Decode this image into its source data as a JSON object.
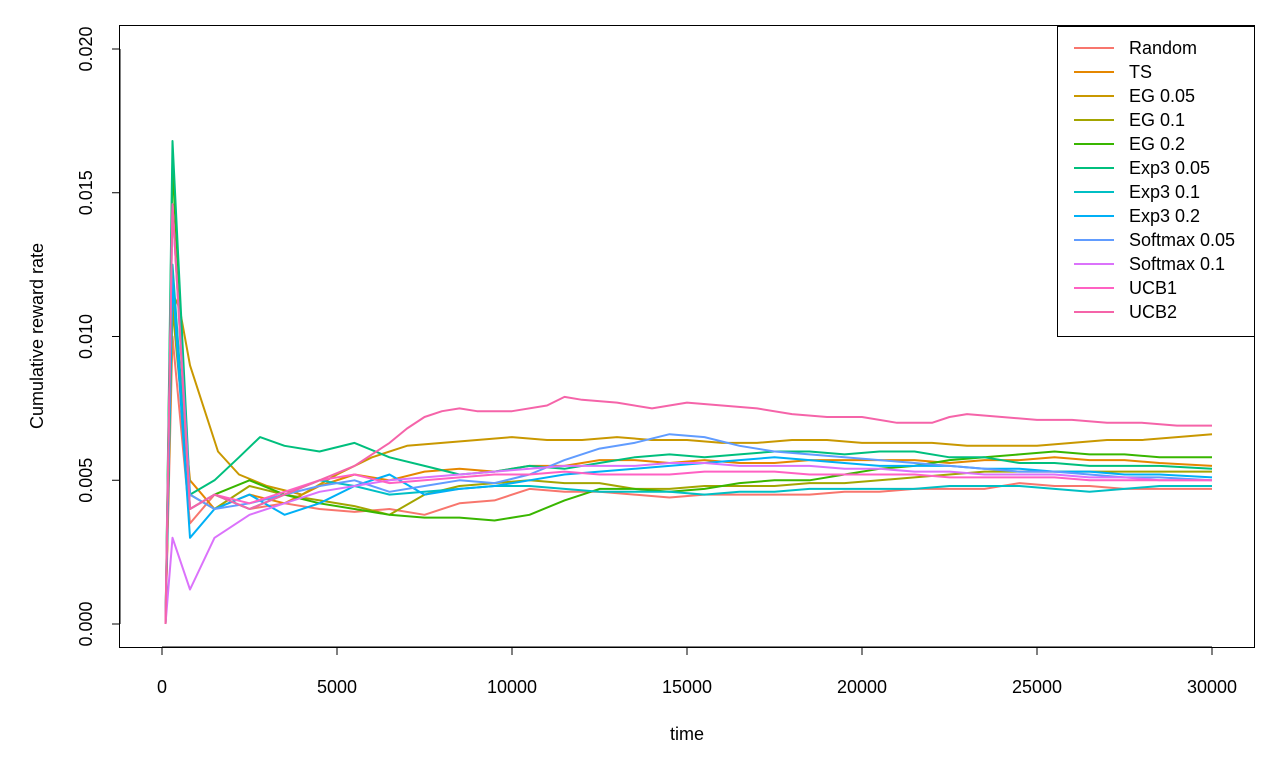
{
  "chart_data": {
    "type": "line",
    "xlabel": "time",
    "ylabel": "Cumulative reward rate",
    "xlim": [
      -1200,
      31200
    ],
    "ylim": [
      -0.0008,
      0.0208
    ],
    "x_ticks": [
      0,
      5000,
      10000,
      15000,
      20000,
      25000,
      30000
    ],
    "x_tick_labels": [
      "0",
      "5000",
      "10000",
      "15000",
      "20000",
      "25000",
      "30000"
    ],
    "y_ticks": [
      0.0,
      0.005,
      0.01,
      0.015,
      0.02
    ],
    "y_tick_labels": [
      "0.000",
      "0.005",
      "0.010",
      "0.015",
      "0.020"
    ],
    "legend_position": "top-right",
    "grid": false,
    "series": [
      {
        "name": "Random",
        "color": "#F8766D",
        "x": [
          100,
          300,
          800,
          1500,
          2500,
          3500,
          4500,
          5500,
          6500,
          7500,
          8500,
          9500,
          10500,
          11500,
          12500,
          13500,
          14500,
          15500,
          16500,
          17500,
          18500,
          19500,
          20500,
          21500,
          22500,
          23500,
          24500,
          25500,
          26500,
          27500,
          28500,
          30000
        ],
        "y": [
          0.0,
          0.01,
          0.0035,
          0.0045,
          0.004,
          0.0042,
          0.004,
          0.0039,
          0.004,
          0.0038,
          0.0042,
          0.0043,
          0.0047,
          0.0046,
          0.0046,
          0.0045,
          0.0044,
          0.0045,
          0.0045,
          0.0045,
          0.0045,
          0.0046,
          0.0046,
          0.0047,
          0.0047,
          0.0047,
          0.0049,
          0.0048,
          0.0048,
          0.0047,
          0.0047,
          0.0047
        ]
      },
      {
        "name": "TS",
        "color": "#E58700",
        "x": [
          100,
          300,
          800,
          1500,
          2500,
          3500,
          4500,
          5500,
          6500,
          7500,
          8500,
          9500,
          10500,
          11500,
          12500,
          13500,
          14500,
          15500,
          16500,
          17500,
          18500,
          19500,
          20500,
          21500,
          22500,
          23500,
          24500,
          25500,
          26500,
          27500,
          28500,
          30000
        ],
        "y": [
          0.0,
          0.0115,
          0.005,
          0.004,
          0.0045,
          0.0042,
          0.0048,
          0.0052,
          0.005,
          0.0053,
          0.0054,
          0.0053,
          0.0055,
          0.0055,
          0.0057,
          0.0057,
          0.0056,
          0.0057,
          0.0056,
          0.0056,
          0.0057,
          0.0057,
          0.0057,
          0.0057,
          0.0056,
          0.0057,
          0.0057,
          0.0058,
          0.0057,
          0.0057,
          0.0056,
          0.0055
        ]
      },
      {
        "name": "EG 0.05",
        "color": "#C99800",
        "x": [
          100,
          300,
          500,
          800,
          1200,
          1600,
          2200,
          3000,
          4000,
          5000,
          6000,
          7000,
          8000,
          9000,
          10000,
          11000,
          12000,
          13000,
          14000,
          15000,
          16000,
          17000,
          18000,
          19000,
          20000,
          21000,
          22000,
          23000,
          24000,
          25000,
          26000,
          27000,
          28000,
          29000,
          30000
        ],
        "y": [
          0.0,
          0.0115,
          0.011,
          0.009,
          0.0075,
          0.006,
          0.0052,
          0.0048,
          0.0045,
          0.0052,
          0.0058,
          0.0062,
          0.0063,
          0.0064,
          0.0065,
          0.0064,
          0.0064,
          0.0065,
          0.0064,
          0.0064,
          0.0063,
          0.0063,
          0.0064,
          0.0064,
          0.0063,
          0.0063,
          0.0063,
          0.0062,
          0.0062,
          0.0062,
          0.0063,
          0.0064,
          0.0064,
          0.0065,
          0.0066
        ]
      },
      {
        "name": "EG 0.1",
        "color": "#A3A500",
        "x": [
          100,
          300,
          800,
          1500,
          2500,
          3500,
          4500,
          5500,
          6500,
          7500,
          8500,
          9500,
          10500,
          11500,
          12500,
          13500,
          14500,
          15500,
          16500,
          17500,
          18500,
          19500,
          20500,
          21500,
          22500,
          23500,
          24500,
          25500,
          26500,
          27500,
          28500,
          30000
        ],
        "y": [
          0.0,
          0.011,
          0.0045,
          0.004,
          0.0048,
          0.0045,
          0.0043,
          0.0041,
          0.0038,
          0.0045,
          0.0048,
          0.0049,
          0.005,
          0.0049,
          0.0049,
          0.0047,
          0.0047,
          0.0048,
          0.0048,
          0.0048,
          0.0049,
          0.0049,
          0.005,
          0.0051,
          0.0052,
          0.0053,
          0.0053,
          0.0053,
          0.0053,
          0.0053,
          0.0053,
          0.0053
        ]
      },
      {
        "name": "EG 0.2",
        "color": "#39B600",
        "x": [
          100,
          300,
          800,
          1500,
          2500,
          3500,
          4500,
          5500,
          6500,
          7500,
          8500,
          9500,
          10500,
          11500,
          12500,
          13500,
          14500,
          15500,
          16500,
          17500,
          18500,
          19500,
          20500,
          21500,
          22500,
          23500,
          24500,
          25500,
          26500,
          27500,
          28500,
          30000
        ],
        "y": [
          0.0,
          0.016,
          0.004,
          0.0045,
          0.005,
          0.0045,
          0.0042,
          0.004,
          0.0038,
          0.0037,
          0.0037,
          0.0036,
          0.0038,
          0.0043,
          0.0047,
          0.0047,
          0.0046,
          0.0047,
          0.0049,
          0.005,
          0.005,
          0.0052,
          0.0054,
          0.0055,
          0.0057,
          0.0058,
          0.0059,
          0.006,
          0.0059,
          0.0059,
          0.0058,
          0.0058
        ]
      },
      {
        "name": "Exp3 0.05",
        "color": "#00BF7D",
        "x": [
          100,
          300,
          800,
          1500,
          2200,
          2800,
          3500,
          4500,
          5500,
          6500,
          7500,
          8500,
          9500,
          10500,
          11500,
          12500,
          13500,
          14500,
          15500,
          16500,
          17500,
          18500,
          19500,
          20500,
          21500,
          22500,
          23500,
          24500,
          25500,
          26500,
          27500,
          28500,
          30000
        ],
        "y": [
          0.0,
          0.0168,
          0.0045,
          0.005,
          0.0058,
          0.0065,
          0.0062,
          0.006,
          0.0063,
          0.0058,
          0.0055,
          0.0052,
          0.0053,
          0.0055,
          0.0054,
          0.0056,
          0.0058,
          0.0059,
          0.0058,
          0.0059,
          0.006,
          0.006,
          0.0059,
          0.006,
          0.006,
          0.0058,
          0.0058,
          0.0056,
          0.0056,
          0.0055,
          0.0055,
          0.0055,
          0.0054
        ]
      },
      {
        "name": "Exp3 0.1",
        "color": "#00BFC4",
        "x": [
          100,
          300,
          800,
          1500,
          2500,
          3500,
          4500,
          5500,
          6500,
          7500,
          8500,
          9500,
          10500,
          11500,
          12500,
          13500,
          14500,
          15500,
          16500,
          17500,
          18500,
          19500,
          20500,
          21500,
          22500,
          23500,
          24500,
          25500,
          26500,
          27500,
          28500,
          30000
        ],
        "y": [
          0.0,
          0.0125,
          0.004,
          0.0045,
          0.004,
          0.0045,
          0.005,
          0.0048,
          0.0045,
          0.0046,
          0.0047,
          0.0048,
          0.0048,
          0.0047,
          0.0046,
          0.0046,
          0.0046,
          0.0045,
          0.0046,
          0.0046,
          0.0047,
          0.0047,
          0.0047,
          0.0047,
          0.0048,
          0.0048,
          0.0048,
          0.0047,
          0.0046,
          0.0047,
          0.0048,
          0.0048
        ]
      },
      {
        "name": "Exp3 0.2",
        "color": "#00B0F6",
        "x": [
          100,
          300,
          800,
          1500,
          2500,
          3500,
          4500,
          5500,
          6500,
          7500,
          8500,
          9500,
          10500,
          11500,
          12500,
          13500,
          14500,
          15500,
          16500,
          17500,
          18500,
          19500,
          20500,
          21500,
          22500,
          23500,
          24500,
          25500,
          26500,
          27500,
          28500,
          30000
        ],
        "y": [
          0.0,
          0.012,
          0.003,
          0.004,
          0.0045,
          0.0038,
          0.0042,
          0.0048,
          0.0052,
          0.0045,
          0.0047,
          0.0048,
          0.005,
          0.0052,
          0.0053,
          0.0054,
          0.0055,
          0.0056,
          0.0057,
          0.0058,
          0.0057,
          0.0056,
          0.0055,
          0.0055,
          0.0055,
          0.0054,
          0.0054,
          0.0053,
          0.0053,
          0.0052,
          0.0052,
          0.0051
        ]
      },
      {
        "name": "Softmax 0.05",
        "color": "#619CFF",
        "x": [
          100,
          300,
          800,
          1500,
          2500,
          3500,
          4500,
          5500,
          6500,
          7500,
          8500,
          9500,
          10500,
          11500,
          12500,
          13500,
          14500,
          15500,
          16500,
          17500,
          18500,
          19500,
          20500,
          21500,
          22500,
          23500,
          24500,
          25500,
          26500,
          27500,
          28500,
          30000
        ],
        "y": [
          0.0,
          0.0145,
          0.0045,
          0.004,
          0.0042,
          0.0045,
          0.0048,
          0.005,
          0.0046,
          0.0048,
          0.005,
          0.0049,
          0.0052,
          0.0057,
          0.0061,
          0.0063,
          0.0066,
          0.0065,
          0.0062,
          0.006,
          0.0059,
          0.0058,
          0.0057,
          0.0056,
          0.0055,
          0.0054,
          0.0053,
          0.0053,
          0.0052,
          0.0051,
          0.0051,
          0.005
        ]
      },
      {
        "name": "Softmax 0.1",
        "color": "#DB72FB",
        "x": [
          100,
          300,
          800,
          1500,
          2500,
          3500,
          4500,
          5500,
          6500,
          7500,
          8500,
          9500,
          10500,
          11500,
          12500,
          13500,
          14500,
          15500,
          16500,
          17500,
          18500,
          19500,
          20500,
          21500,
          22500,
          23500,
          24500,
          25500,
          26500,
          27500,
          28500,
          30000
        ],
        "y": [
          0.0,
          0.003,
          0.0012,
          0.003,
          0.0038,
          0.0042,
          0.0046,
          0.0048,
          0.005,
          0.0051,
          0.0052,
          0.0053,
          0.0054,
          0.0055,
          0.0055,
          0.0055,
          0.0056,
          0.0056,
          0.0055,
          0.0055,
          0.0055,
          0.0054,
          0.0054,
          0.0053,
          0.0053,
          0.0052,
          0.0052,
          0.0052,
          0.0051,
          0.0051,
          0.005,
          0.005
        ]
      },
      {
        "name": "UCB1",
        "color": "#FF61C3",
        "x": [
          100,
          300,
          800,
          1500,
          2500,
          3500,
          4500,
          5500,
          6500,
          7500,
          8500,
          9500,
          10500,
          11500,
          12500,
          13500,
          14500,
          15500,
          16500,
          17500,
          18500,
          19500,
          20500,
          21500,
          22500,
          23500,
          24500,
          25500,
          26500,
          27500,
          28500,
          30000
        ],
        "y": [
          0.0,
          0.0146,
          0.004,
          0.0045,
          0.0042,
          0.0046,
          0.005,
          0.0052,
          0.0049,
          0.005,
          0.0051,
          0.0052,
          0.0052,
          0.0053,
          0.0052,
          0.0052,
          0.0052,
          0.0053,
          0.0053,
          0.0053,
          0.0052,
          0.0052,
          0.0052,
          0.0052,
          0.0051,
          0.0051,
          0.0051,
          0.0051,
          0.005,
          0.005,
          0.005,
          0.005
        ]
      },
      {
        "name": "UCB2",
        "color": "#F564A9",
        "x": [
          100,
          300,
          800,
          1500,
          2500,
          3500,
          4500,
          5500,
          6500,
          7000,
          7500,
          8000,
          8500,
          9000,
          10000,
          11000,
          11500,
          12000,
          13000,
          14000,
          15000,
          16000,
          17000,
          18000,
          19000,
          20000,
          21000,
          22000,
          22500,
          23000,
          24000,
          25000,
          26000,
          27000,
          28000,
          29000,
          30000
        ],
        "y": [
          0.0,
          0.0146,
          0.004,
          0.0045,
          0.004,
          0.0045,
          0.005,
          0.0055,
          0.0063,
          0.0068,
          0.0072,
          0.0074,
          0.0075,
          0.0074,
          0.0074,
          0.0076,
          0.0079,
          0.0078,
          0.0077,
          0.0075,
          0.0077,
          0.0076,
          0.0075,
          0.0073,
          0.0072,
          0.0072,
          0.007,
          0.007,
          0.0072,
          0.0073,
          0.0072,
          0.0071,
          0.0071,
          0.007,
          0.007,
          0.0069,
          0.0069
        ]
      }
    ]
  }
}
